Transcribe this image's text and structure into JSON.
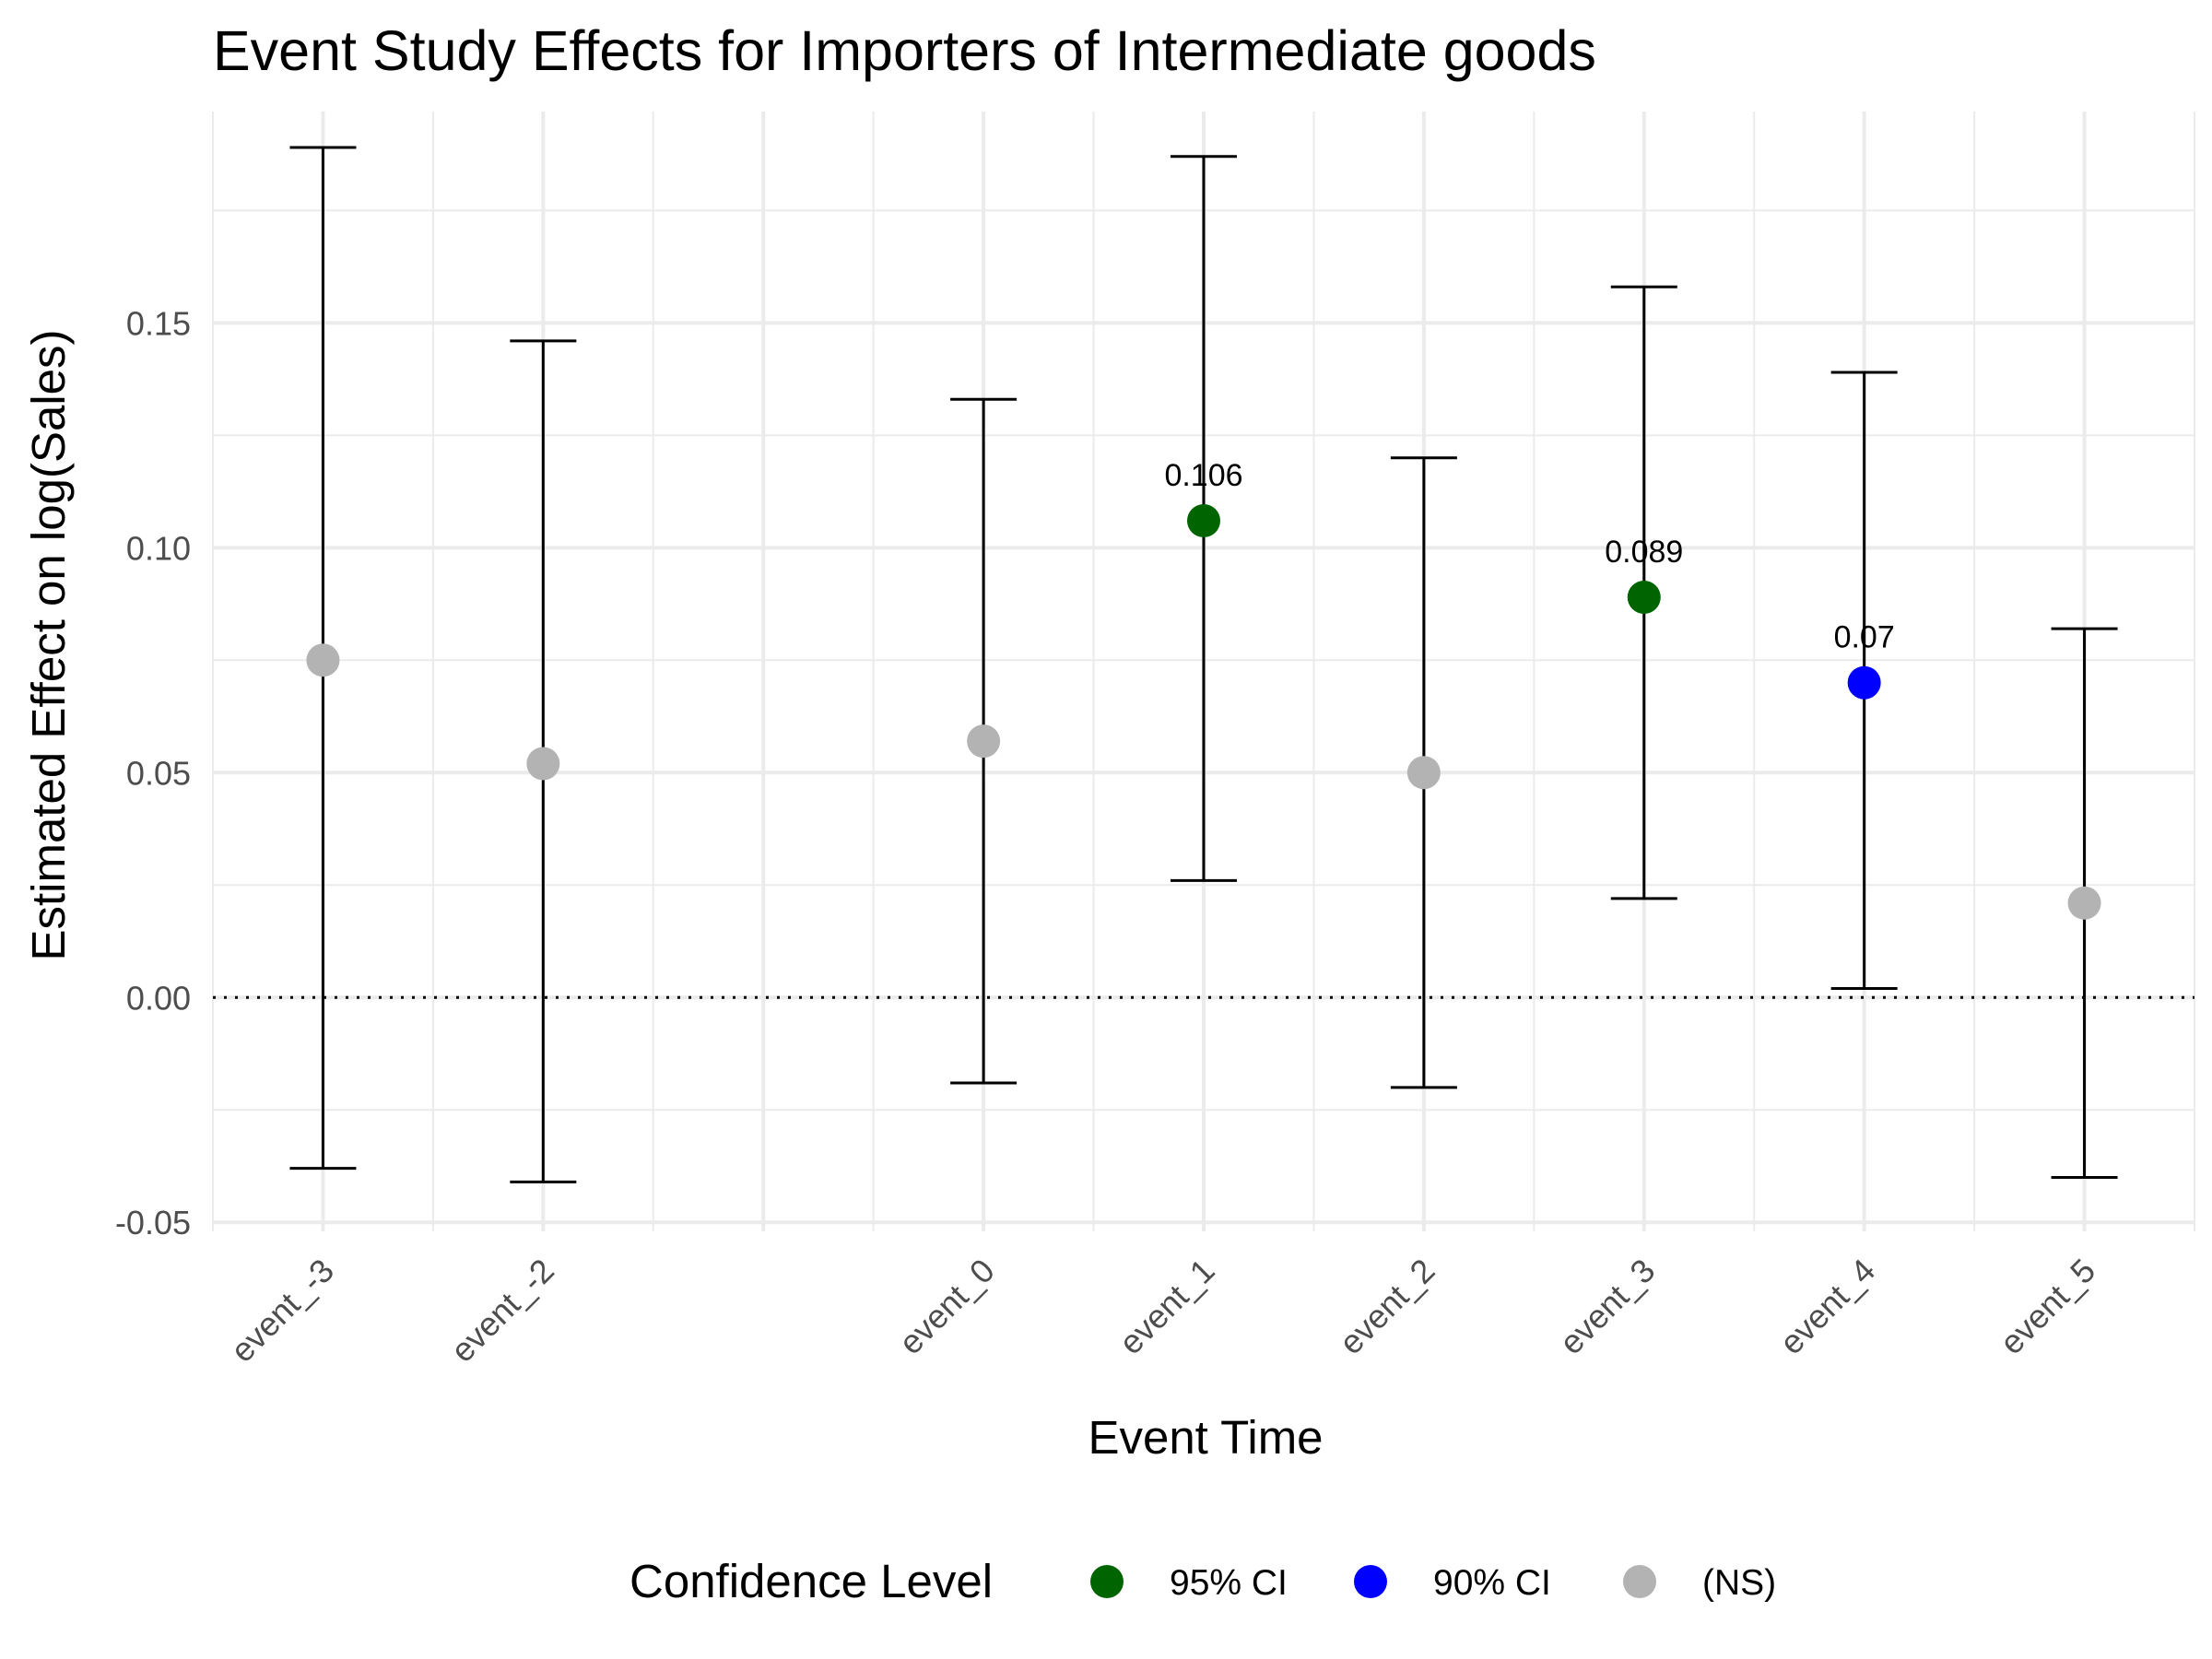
{
  "chart_data": {
    "type": "scatter",
    "title": "Event Study Effects for Importers of Intermediate goods",
    "xlabel": "Event Time",
    "ylabel": "Estimated Effect on log(Sales)",
    "categories": [
      "event_-3",
      "event_-2",
      "event_0",
      "event_1",
      "event_2",
      "event_3",
      "event_4",
      "event_5"
    ],
    "x_positions": [
      -3,
      -2,
      0,
      1,
      2,
      3,
      4,
      5
    ],
    "ylim": [
      -0.052,
      0.197
    ],
    "y_ticks": [
      -0.05,
      0.0,
      0.05,
      0.1,
      0.15
    ],
    "y_tick_labels": [
      "-0.05",
      "0.00",
      "0.05",
      "0.10",
      "0.15"
    ],
    "reference_line": 0,
    "grid": true,
    "points": [
      {
        "x": -3,
        "estimate": 0.075,
        "ci_low": -0.038,
        "ci_high": 0.189,
        "level": "(NS)",
        "label": ""
      },
      {
        "x": -2,
        "estimate": 0.052,
        "ci_low": -0.041,
        "ci_high": 0.146,
        "level": "(NS)",
        "label": ""
      },
      {
        "x": 0,
        "estimate": 0.057,
        "ci_low": -0.019,
        "ci_high": 0.133,
        "level": "(NS)",
        "label": ""
      },
      {
        "x": 1,
        "estimate": 0.106,
        "ci_low": 0.026,
        "ci_high": 0.187,
        "level": "95% CI",
        "label": "0.106"
      },
      {
        "x": 2,
        "estimate": 0.05,
        "ci_low": -0.02,
        "ci_high": 0.12,
        "level": "(NS)",
        "label": ""
      },
      {
        "x": 3,
        "estimate": 0.089,
        "ci_low": 0.022,
        "ci_high": 0.158,
        "level": "95% CI",
        "label": "0.089"
      },
      {
        "x": 4,
        "estimate": 0.07,
        "ci_low": 0.002,
        "ci_high": 0.139,
        "level": "90% CI",
        "label": "0.07"
      },
      {
        "x": 5,
        "estimate": 0.021,
        "ci_low": -0.04,
        "ci_high": 0.082,
        "level": "(NS)",
        "label": ""
      }
    ],
    "legend": {
      "title": "Confidence Level",
      "position": "bottom",
      "items": [
        {
          "label": "95% CI",
          "color": "#006400"
        },
        {
          "label": "90% CI",
          "color": "#0000ff"
        },
        {
          "label": "(NS)",
          "color": "#b3b3b3"
        }
      ]
    }
  }
}
